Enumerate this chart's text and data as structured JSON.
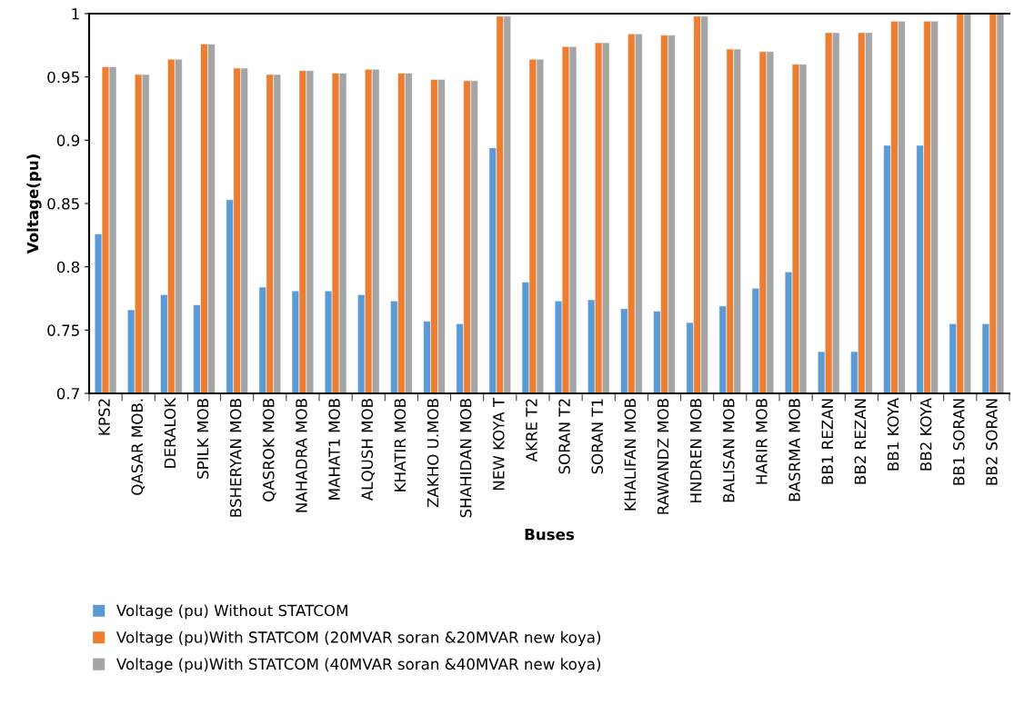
{
  "chart_data": {
    "type": "bar",
    "xlabel": "Buses",
    "ylabel": "Voltage(pu)",
    "categories": [
      "KPS2",
      "QASAR MOB.",
      "DERALOK",
      "SPILK MOB",
      "BSHERYAN MOB",
      "QASROK MOB",
      "NAHADRA MOB",
      "MAHAT1 MOB",
      "ALQUSH MOB",
      "KHATIR MOB",
      "ZAKHO U.MOB",
      "SHAHIDAN MOB",
      "NEW KOYA T",
      "AKRE T2",
      "SORAN T2",
      "SORAN T1",
      "KHALIFAN MOB",
      "RAWANDZ MOB",
      "HNDREN MOB",
      "BALISAN MOB",
      "HARIR MOB",
      "BASRMA MOB",
      "BB1 REZAN",
      "BB2 REZAN",
      "BB1 KOYA",
      "BB2 KOYA",
      "BB1 SORAN",
      "BB2 SORAN"
    ],
    "series": [
      {
        "name": "Voltage (pu) Without STATCOM",
        "color": "#5b9bd5",
        "values": [
          0.826,
          0.766,
          0.778,
          0.77,
          0.853,
          0.784,
          0.781,
          0.781,
          0.778,
          0.773,
          0.757,
          0.755,
          0.894,
          0.788,
          0.773,
          0.774,
          0.767,
          0.765,
          0.756,
          0.769,
          0.783,
          0.796,
          0.733,
          0.733,
          0.896,
          0.896,
          0.755,
          0.755
        ]
      },
      {
        "name": "Voltage (pu)With STATCOM (20MVAR soran &20MVAR new koya)",
        "color": "#ed7d31",
        "values": [
          0.958,
          0.952,
          0.964,
          0.976,
          0.957,
          0.952,
          0.955,
          0.953,
          0.956,
          0.953,
          0.948,
          0.947,
          0.998,
          0.964,
          0.974,
          0.977,
          0.984,
          0.983,
          0.998,
          0.972,
          0.97,
          0.96,
          0.985,
          0.985,
          0.994,
          0.994,
          1.0,
          1.0
        ]
      },
      {
        "name": "Voltage (pu)With STATCOM (40MVAR soran &40MVAR new koya)",
        "color": "#a5a5a5",
        "values": [
          0.958,
          0.952,
          0.964,
          0.976,
          0.957,
          0.952,
          0.955,
          0.953,
          0.956,
          0.953,
          0.948,
          0.947,
          0.998,
          0.964,
          0.974,
          0.977,
          0.984,
          0.983,
          0.998,
          0.972,
          0.97,
          0.96,
          0.985,
          0.985,
          0.994,
          0.994,
          1.0,
          1.0
        ]
      }
    ],
    "ylim": [
      0.7,
      1
    ],
    "yticks": [
      {
        "value": 0.7,
        "label": "0.7"
      },
      {
        "value": 0.75,
        "label": "0.75"
      },
      {
        "value": 0.8,
        "label": "0.8"
      },
      {
        "value": 0.85,
        "label": "0.85"
      },
      {
        "value": 0.9,
        "label": "0.9"
      },
      {
        "value": 0.95,
        "label": "0.95"
      },
      {
        "value": 1,
        "label": "1"
      }
    ],
    "grid": false,
    "legend": "bottom"
  }
}
